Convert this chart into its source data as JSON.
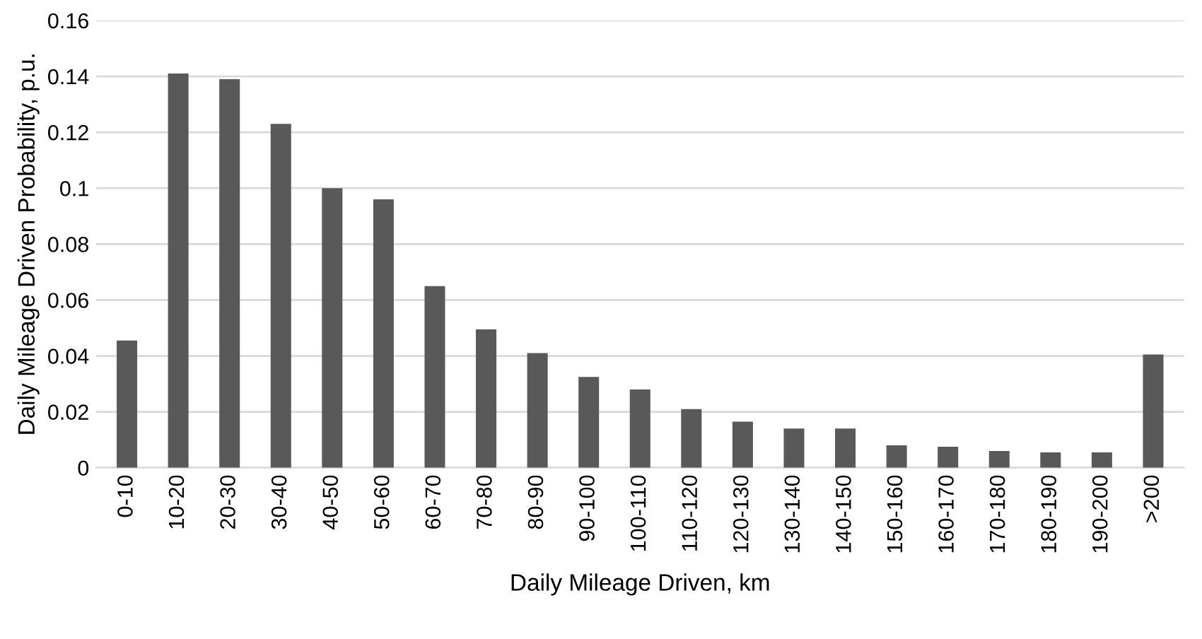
{
  "chart_data": {
    "type": "bar",
    "xlabel": "Daily Mileage Driven, km",
    "ylabel": "Daily Mileage Driven Probability, p.u.",
    "categories": [
      "0-10",
      "10-20",
      "20-30",
      "30-40",
      "40-50",
      "50-60",
      "60-70",
      "70-80",
      "80-90",
      "90-100",
      "100-110",
      "110-120",
      "120-130",
      "130-140",
      "140-150",
      "150-160",
      "160-170",
      "170-180",
      "180-190",
      "190-200",
      ">200"
    ],
    "values": [
      0.0455,
      0.141,
      0.139,
      0.123,
      0.1,
      0.096,
      0.065,
      0.0495,
      0.041,
      0.0325,
      0.028,
      0.021,
      0.0165,
      0.014,
      0.014,
      0.008,
      0.0075,
      0.006,
      0.0055,
      0.0055,
      0.0405
    ],
    "color": "#595959",
    "ylim": [
      0,
      0.16
    ],
    "yticks": [
      0,
      0.02,
      0.04,
      0.06,
      0.08,
      0.1,
      0.12,
      0.14,
      0.16
    ],
    "grid": "y"
  }
}
